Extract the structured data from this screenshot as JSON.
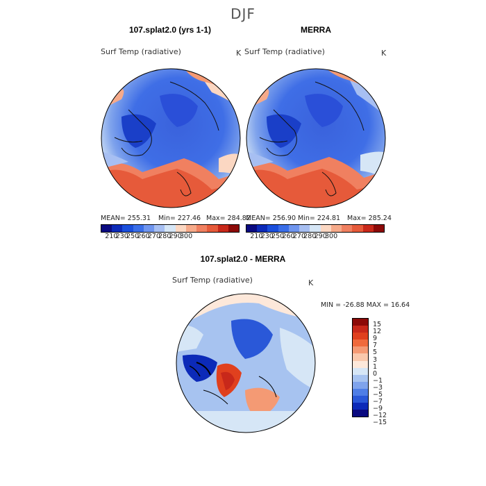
{
  "season": "DJF",
  "variable": "Surf Temp (radiative)",
  "units": "K",
  "panels": [
    {
      "title": "107.splat2.0 (yrs 1-1)",
      "stats": {
        "mean": "MEAN= 255.31",
        "min": "Min= 227.46",
        "max": "Max= 284.82"
      }
    },
    {
      "title": "MERRA",
      "stats": {
        "mean": "MEAN= 256.90",
        "min": "Min= 224.81",
        "max": "Max= 285.24"
      }
    }
  ],
  "abs_colorbar": {
    "colors": [
      "#0a0a80",
      "#0c2ab8",
      "#1a4fdc",
      "#3a6ee8",
      "#6f95ee",
      "#a7bff2",
      "#d6e6f6",
      "#fbd7c2",
      "#f6aa8a",
      "#f08060",
      "#e65a3a",
      "#c8281a",
      "#8c0a08"
    ],
    "ticks": [
      "210",
      "230",
      "250",
      "260",
      "270",
      "280",
      "290",
      "300"
    ]
  },
  "diff_panel": {
    "title": "107.splat2.0 - MERRA",
    "min_max": "MIN = -26.88 MAX =  16.64",
    "colorbar": {
      "colors": [
        "#8c0a08",
        "#c8281a",
        "#e0401e",
        "#f06a3c",
        "#f49a74",
        "#f9c8ac",
        "#fde8da",
        "#d6e6f6",
        "#a7c3f0",
        "#7fa3ec",
        "#4f7ee6",
        "#2a58d8",
        "#0c2ab8",
        "#0a0a80"
      ],
      "ticks": [
        "15",
        "12",
        "9",
        "7",
        "5",
        "3",
        "1",
        "0",
        "−1",
        "−3",
        "−5",
        "−7",
        "−9",
        "−12",
        "−15"
      ]
    }
  }
}
